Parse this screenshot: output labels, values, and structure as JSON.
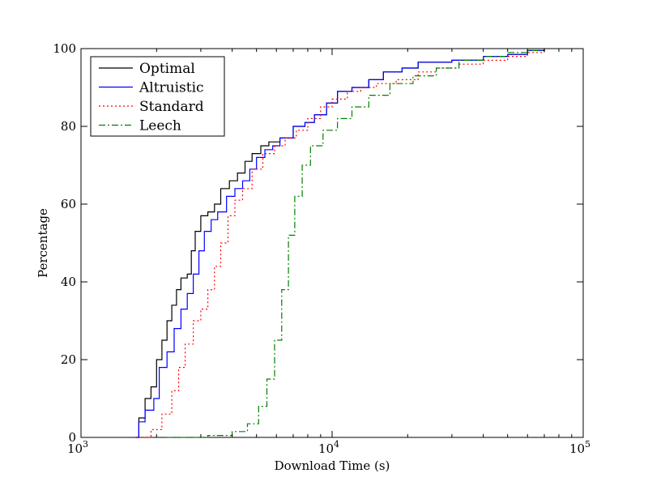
{
  "chart_data": {
    "type": "line",
    "title": "",
    "xlabel": "Download Time (s)",
    "ylabel": "Percentage",
    "xscale": "log",
    "xlim": [
      1000,
      100000
    ],
    "ylim": [
      0,
      100
    ],
    "x_ticks": [
      {
        "value": 1000,
        "base": "10",
        "exp": "3"
      },
      {
        "value": 10000,
        "base": "10",
        "exp": "4"
      },
      {
        "value": 100000,
        "base": "10",
        "exp": "5"
      }
    ],
    "y_ticks": [
      {
        "value": 0,
        "label": "0"
      },
      {
        "value": 20,
        "label": "20"
      },
      {
        "value": 40,
        "label": "40"
      },
      {
        "value": 60,
        "label": "60"
      },
      {
        "value": 80,
        "label": "80"
      },
      {
        "value": 100,
        "label": "100"
      }
    ],
    "legend_position": "top-left",
    "series": [
      {
        "name": "Optimal",
        "color": "#000000",
        "dash": "",
        "points": [
          [
            1650,
            0
          ],
          [
            1700,
            5
          ],
          [
            1800,
            10
          ],
          [
            1900,
            13
          ],
          [
            2000,
            20
          ],
          [
            2100,
            25
          ],
          [
            2200,
            30
          ],
          [
            2300,
            34
          ],
          [
            2400,
            38
          ],
          [
            2500,
            41
          ],
          [
            2650,
            42
          ],
          [
            2750,
            48
          ],
          [
            2850,
            53
          ],
          [
            3000,
            57
          ],
          [
            3200,
            58
          ],
          [
            3400,
            60
          ],
          [
            3600,
            64
          ],
          [
            3900,
            66
          ],
          [
            4200,
            68
          ],
          [
            4500,
            71
          ],
          [
            4800,
            73
          ],
          [
            5200,
            75
          ],
          [
            5600,
            76
          ],
          [
            6200,
            77
          ],
          [
            7000,
            80
          ],
          [
            7800,
            81
          ],
          [
            8500,
            83
          ],
          [
            9500,
            86
          ],
          [
            10500,
            89
          ],
          [
            12000,
            90
          ],
          [
            14000,
            92
          ],
          [
            16000,
            94
          ],
          [
            19000,
            95
          ],
          [
            22000,
            96.5
          ],
          [
            30000,
            97
          ],
          [
            40000,
            98
          ],
          [
            50000,
            98.5
          ],
          [
            60000,
            99.5
          ],
          [
            70000,
            100
          ]
        ]
      },
      {
        "name": "Altruistic",
        "color": "#0000ff",
        "dash": "",
        "points": [
          [
            1650,
            0
          ],
          [
            1700,
            4
          ],
          [
            1800,
            7
          ],
          [
            1950,
            10
          ],
          [
            2050,
            18
          ],
          [
            2200,
            22
          ],
          [
            2350,
            28
          ],
          [
            2500,
            33
          ],
          [
            2650,
            37
          ],
          [
            2800,
            42
          ],
          [
            2950,
            48
          ],
          [
            3100,
            53
          ],
          [
            3300,
            56
          ],
          [
            3500,
            58
          ],
          [
            3800,
            62
          ],
          [
            4100,
            64
          ],
          [
            4400,
            66
          ],
          [
            4700,
            69
          ],
          [
            5000,
            72
          ],
          [
            5400,
            74
          ],
          [
            5800,
            75
          ],
          [
            6200,
            77
          ],
          [
            7000,
            80
          ],
          [
            7800,
            81
          ],
          [
            8500,
            83
          ],
          [
            9500,
            86
          ],
          [
            10500,
            89
          ],
          [
            12000,
            90
          ],
          [
            14000,
            92
          ],
          [
            16000,
            94
          ],
          [
            19000,
            95
          ],
          [
            22000,
            96.5
          ],
          [
            30000,
            97
          ],
          [
            40000,
            98
          ],
          [
            50000,
            98.5
          ],
          [
            60000,
            99.5
          ],
          [
            70000,
            100
          ]
        ]
      },
      {
        "name": "Standard",
        "color": "#ff0000",
        "dash": "2,3",
        "points": [
          [
            1650,
            0
          ],
          [
            1900,
            2
          ],
          [
            2100,
            6
          ],
          [
            2300,
            12
          ],
          [
            2450,
            18
          ],
          [
            2600,
            24
          ],
          [
            2800,
            30
          ],
          [
            3000,
            33
          ],
          [
            3200,
            38
          ],
          [
            3400,
            44
          ],
          [
            3600,
            50
          ],
          [
            3850,
            57
          ],
          [
            4100,
            61
          ],
          [
            4400,
            64
          ],
          [
            4800,
            69
          ],
          [
            5300,
            73
          ],
          [
            5900,
            75
          ],
          [
            6500,
            77
          ],
          [
            7200,
            79
          ],
          [
            8000,
            82
          ],
          [
            9000,
            85
          ],
          [
            10000,
            87
          ],
          [
            11500,
            89
          ],
          [
            13000,
            90
          ],
          [
            15000,
            91
          ],
          [
            18000,
            92
          ],
          [
            22000,
            94
          ],
          [
            26000,
            95
          ],
          [
            32000,
            96
          ],
          [
            40000,
            97
          ],
          [
            50000,
            98
          ],
          [
            60000,
            99
          ],
          [
            70000,
            100
          ]
        ]
      },
      {
        "name": "Leech",
        "color": "#008000",
        "dash": "8,3,2,3",
        "points": [
          [
            2200,
            0
          ],
          [
            3200,
            0.5
          ],
          [
            4000,
            1.5
          ],
          [
            4600,
            3.5
          ],
          [
            5100,
            8
          ],
          [
            5500,
            15
          ],
          [
            5900,
            25
          ],
          [
            6300,
            38
          ],
          [
            6700,
            52
          ],
          [
            7100,
            62
          ],
          [
            7600,
            70
          ],
          [
            8200,
            75
          ],
          [
            9200,
            79
          ],
          [
            10500,
            82
          ],
          [
            12000,
            85
          ],
          [
            14000,
            88
          ],
          [
            17000,
            91
          ],
          [
            21000,
            93
          ],
          [
            26000,
            95
          ],
          [
            32000,
            97
          ],
          [
            40000,
            98
          ],
          [
            50000,
            99
          ],
          [
            60000,
            99.5
          ],
          [
            70000,
            100
          ]
        ]
      }
    ]
  }
}
